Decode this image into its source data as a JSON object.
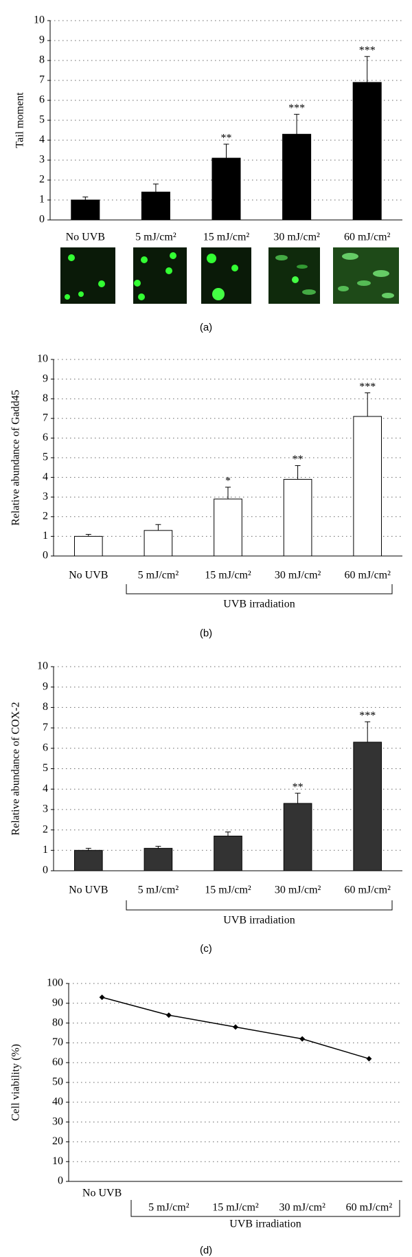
{
  "chart_data": [
    {
      "type": "bar",
      "y_label": "Tail moment",
      "categories": [
        "No UVB",
        "5 mJ/cm²",
        "15 mJ/cm²",
        "30 mJ/cm²",
        "60 mJ/cm²"
      ],
      "values": [
        1.0,
        1.4,
        3.1,
        4.3,
        6.9
      ],
      "errors": [
        0.15,
        0.4,
        0.7,
        1.0,
        1.3
      ],
      "significance": [
        null,
        null,
        "**",
        "***",
        "***"
      ],
      "color": "#000000",
      "ylim": [
        0,
        10
      ],
      "yticks": [
        0,
        1,
        2,
        3,
        4,
        5,
        6,
        7,
        8,
        9,
        10
      ],
      "grid": true,
      "panel_label": "(a)"
    },
    {
      "type": "bar",
      "y_label": "Relative abundance of Gadd45",
      "categories": [
        "No UVB",
        "5 mJ/cm²",
        "15 mJ/cm²",
        "30 mJ/cm²",
        "60 mJ/cm²"
      ],
      "values": [
        1.0,
        1.3,
        2.9,
        3.9,
        7.1
      ],
      "errors": [
        0.1,
        0.3,
        0.6,
        0.7,
        1.2
      ],
      "significance": [
        null,
        null,
        "*",
        "**",
        "***"
      ],
      "color": "#ffffff",
      "ylim": [
        0,
        10
      ],
      "yticks": [
        0,
        1,
        2,
        3,
        4,
        5,
        6,
        7,
        8,
        9,
        10
      ],
      "grid": true,
      "bracket_label": "UVB irradiation",
      "panel_label": "(b)"
    },
    {
      "type": "bar",
      "y_label": "Relative abundance of COX-2",
      "categories": [
        "No UVB",
        "5 mJ/cm²",
        "15 mJ/cm²",
        "30 mJ/cm²",
        "60 mJ/cm²"
      ],
      "values": [
        1.0,
        1.1,
        1.7,
        3.3,
        6.3
      ],
      "errors": [
        0.1,
        0.1,
        0.2,
        0.5,
        1.0
      ],
      "significance": [
        null,
        null,
        null,
        "**",
        "***"
      ],
      "color": "#333333",
      "ylim": [
        0,
        10
      ],
      "yticks": [
        0,
        1,
        2,
        3,
        4,
        5,
        6,
        7,
        8,
        9,
        10
      ],
      "grid": true,
      "bracket_label": "UVB irradiation",
      "panel_label": "(c)"
    },
    {
      "type": "line",
      "y_label": "Cell viability (%)",
      "categories": [
        "No UVB",
        "5 mJ/cm²",
        "15 mJ/cm²",
        "30 mJ/cm²",
        "60 mJ/cm²"
      ],
      "values": [
        93,
        84,
        78,
        72,
        62
      ],
      "color": "#000000",
      "ylim": [
        0,
        100
      ],
      "yticks": [
        0,
        10,
        20,
        30,
        40,
        50,
        60,
        70,
        80,
        90,
        100
      ],
      "grid": true,
      "bracket_label": "UVB irradiation",
      "panel_label": "(d)"
    }
  ]
}
